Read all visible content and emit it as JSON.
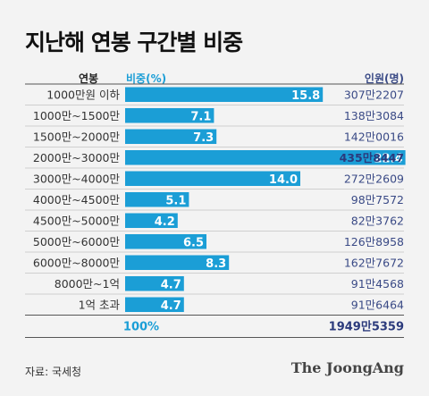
{
  "title": "지난해 연봉 구간별 비중",
  "header": {
    "category": "연봉",
    "share": "비중(%)",
    "people": "인원(명)"
  },
  "colors": {
    "bar": "#1b9ed6",
    "people_text": "#3a4a86",
    "highlight": "#2b3a7c",
    "grid": "#cfcfcf"
  },
  "chart_data": {
    "type": "bar",
    "orientation": "horizontal",
    "categories": [
      "1000만원 이하",
      "1000만~1500만",
      "1500만~2000만",
      "2000만~3000만",
      "3000만~4000만",
      "4000만~4500만",
      "4500만~5000만",
      "5000만~6000만",
      "6000만~8000만",
      "8000만~1억",
      "1억 초과"
    ],
    "values": [
      15.8,
      7.1,
      7.3,
      22.4,
      14.0,
      5.1,
      4.2,
      6.5,
      8.3,
      4.7,
      4.7
    ],
    "value_labels": [
      "15.8",
      "7.1",
      "7.3",
      "22.4",
      "14.0",
      "5.1",
      "4.2",
      "6.5",
      "8.3",
      "4.7",
      "4.7"
    ],
    "people": [
      "307만2207",
      "138만3084",
      "142만0016",
      "435만8447",
      "272만2609",
      "98만7572",
      "82만3762",
      "126만8958",
      "162만7672",
      "91만4568",
      "91만6464"
    ],
    "highlight_index": 3,
    "total_share": "100%",
    "total_people": "1949만5359"
  },
  "source": "자료: 국세청",
  "brand": "The JoongAng"
}
